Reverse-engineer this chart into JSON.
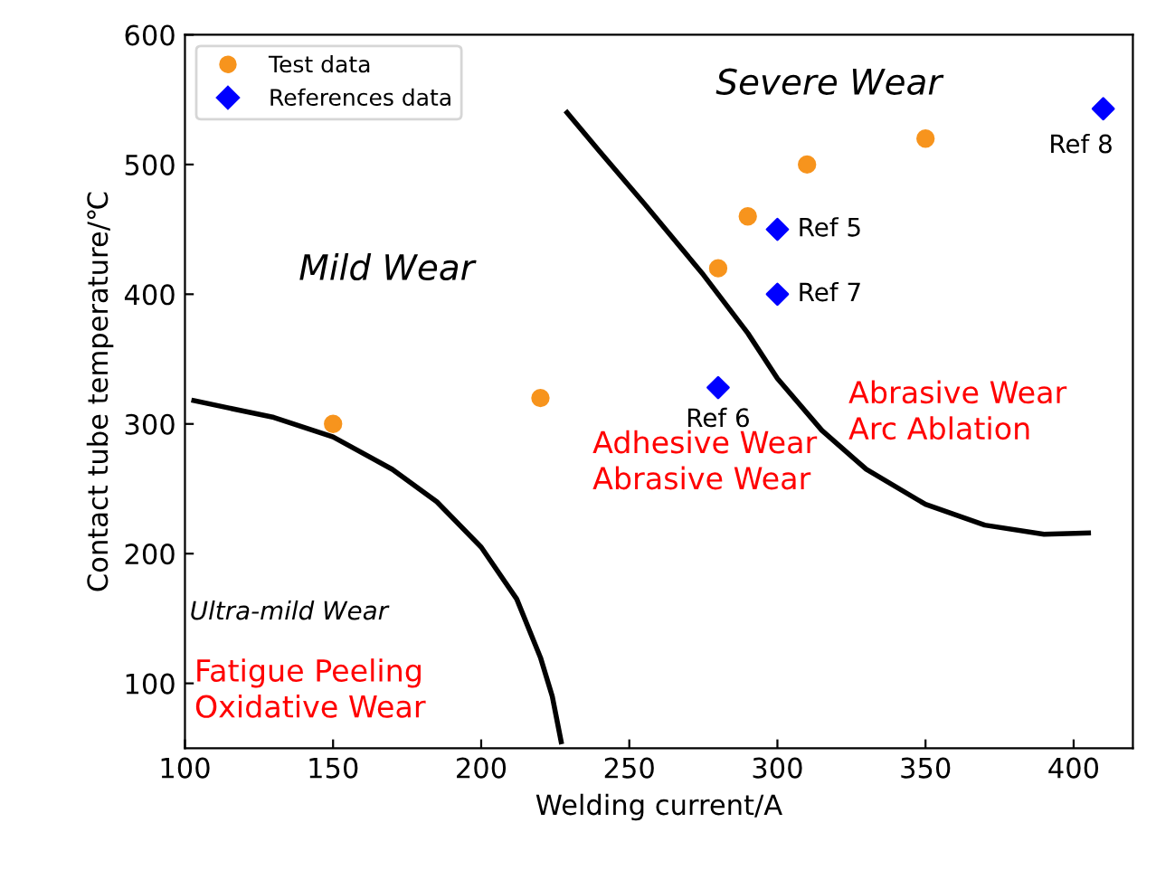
{
  "chart_data": {
    "type": "scatter",
    "xlabel": "Welding current/A",
    "ylabel": "Contact tube temperature/℃",
    "xlim": [
      100,
      420
    ],
    "ylim": [
      50,
      600
    ],
    "xticks": [
      100,
      150,
      200,
      250,
      300,
      350,
      400
    ],
    "yticks": [
      100,
      200,
      300,
      400,
      500,
      600
    ],
    "grid": false,
    "legend": "top left",
    "series": [
      {
        "name": "Test data",
        "marker": "circle",
        "color": "#f7941d",
        "x": [
          150,
          220,
          280,
          290,
          310,
          350
        ],
        "values": [
          300,
          320,
          420,
          460,
          500,
          520
        ]
      },
      {
        "name": "References data",
        "marker": "diamond",
        "color": "#0000ff",
        "x": [
          280,
          300,
          300,
          410
        ],
        "values": [
          328,
          450,
          400,
          543
        ]
      },
      {
        "type": "line",
        "color": "#000000",
        "line_style": "solid",
        "marker": "none",
        "x": [
          103,
          130,
          150,
          170,
          185,
          200,
          212,
          220,
          224,
          227
        ],
        "values": [
          318,
          305,
          290,
          265,
          240,
          205,
          165,
          120,
          90,
          55
        ]
      },
      {
        "type": "line",
        "color": "#000000",
        "line_style": "solid",
        "marker": "none",
        "x": [
          229,
          240,
          255,
          275,
          290,
          300,
          315,
          330,
          350,
          370,
          390,
          405
        ],
        "values": [
          540,
          510,
          470,
          415,
          370,
          335,
          295,
          265,
          238,
          222,
          215,
          216
        ]
      }
    ],
    "annotations": [
      "Severe Wear",
      "Mild Wear",
      "Ultra-mild Wear",
      "Fatigue Peeling\nOxidative Wear",
      "Adhesive Wear\nAbrasive Wear",
      "Abrasive Wear\nArc Ablation",
      {
        "text": "Ref 5",
        "x": 300,
        "y": 450
      },
      {
        "text": "Ref 7",
        "x": 300,
        "y": 400
      },
      {
        "text": "Ref 6",
        "x": 280,
        "y": 328
      },
      {
        "text": "Ref 8",
        "x": 410,
        "y": 543
      }
    ]
  }
}
